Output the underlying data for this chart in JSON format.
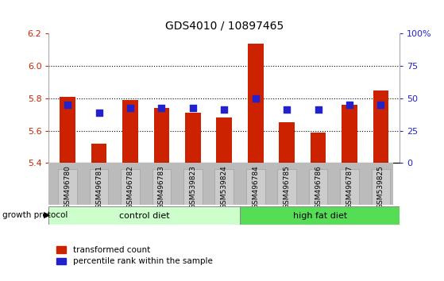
{
  "title": "GDS4010 / 10897465",
  "samples": [
    "GSM496780",
    "GSM496781",
    "GSM496782",
    "GSM496783",
    "GSM539823",
    "GSM539824",
    "GSM496784",
    "GSM496785",
    "GSM496786",
    "GSM496787",
    "GSM539825"
  ],
  "red_values": [
    5.81,
    5.52,
    5.79,
    5.74,
    5.71,
    5.68,
    6.14,
    5.65,
    5.59,
    5.76,
    5.85
  ],
  "blue_values": [
    5.76,
    5.71,
    5.74,
    5.74,
    5.74,
    5.73,
    5.8,
    5.73,
    5.73,
    5.76,
    5.76
  ],
  "ymin": 5.4,
  "ymax": 6.2,
  "y_ticks_left": [
    5.4,
    5.6,
    5.8,
    6.0,
    6.2
  ],
  "y_ticks_right": [
    0,
    25,
    50,
    75,
    100
  ],
  "right_labels": [
    "0",
    "25",
    "50",
    "75",
    "100%"
  ],
  "bar_color": "#cc2200",
  "dot_color": "#2222cc",
  "control_diet_count": 6,
  "high_fat_diet_count": 5,
  "control_diet_label": "control diet",
  "high_fat_diet_label": "high fat diet",
  "growth_protocol_label": "growth protocol",
  "legend1": "transformed count",
  "legend2": "percentile rank within the sample",
  "control_diet_color": "#ccffcc",
  "high_fat_diet_color": "#55dd55",
  "tick_label_bg": "#cccccc",
  "grid_lines": [
    5.6,
    5.8,
    6.0
  ],
  "bar_width": 0.5,
  "dot_size": 40
}
